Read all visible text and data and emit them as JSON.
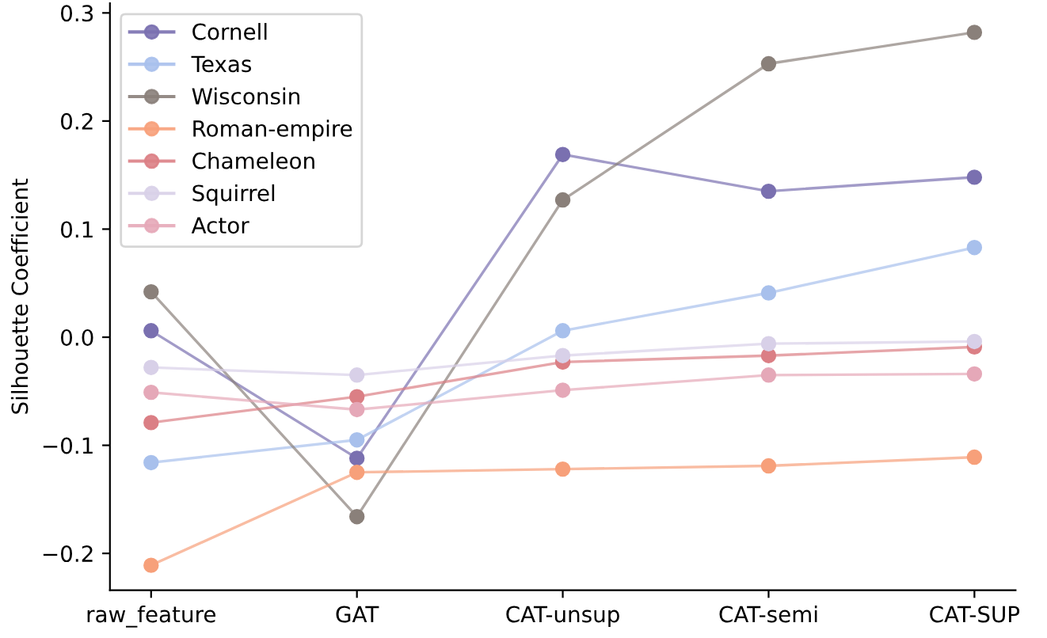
{
  "chart_data": {
    "type": "line",
    "ylabel": "Silhouette Coefficient",
    "categories": [
      "raw_feature",
      "GAT",
      "CAT-unsup",
      "CAT-semi",
      "CAT-SUP"
    ],
    "series": [
      {
        "name": "Cornell",
        "color": "#7a70b0",
        "values": [
          0.006,
          -0.112,
          0.169,
          0.135,
          0.148
        ]
      },
      {
        "name": "Texas",
        "color": "#a8c0ec",
        "values": [
          -0.116,
          -0.095,
          0.006,
          0.041,
          0.083
        ]
      },
      {
        "name": "Wisconsin",
        "color": "#8a807a",
        "values": [
          0.042,
          -0.166,
          0.127,
          0.253,
          0.282
        ]
      },
      {
        "name": "Roman-empire",
        "color": "#f7a07a",
        "values": [
          -0.211,
          -0.125,
          -0.122,
          -0.119,
          -0.111
        ]
      },
      {
        "name": "Chameleon",
        "color": "#db7f85",
        "values": [
          -0.079,
          -0.055,
          -0.023,
          -0.017,
          -0.009
        ]
      },
      {
        "name": "Squirrel",
        "color": "#d8d0e8",
        "values": [
          -0.028,
          -0.035,
          -0.017,
          -0.006,
          -0.004
        ]
      },
      {
        "name": "Actor",
        "color": "#e5a8b8",
        "values": [
          -0.051,
          -0.067,
          -0.049,
          -0.035,
          -0.034
        ]
      }
    ],
    "ylim": [
      -0.234,
      0.309
    ],
    "yticks": [
      {
        "value": -0.2,
        "label": "−0.2"
      },
      {
        "value": -0.1,
        "label": "−0.1"
      },
      {
        "value": 0.0,
        "label": "0.0"
      },
      {
        "value": 0.1,
        "label": "0.1"
      },
      {
        "value": 0.2,
        "label": "0.2"
      },
      {
        "value": 0.3,
        "label": "0.3"
      }
    ],
    "marker": "circle",
    "line_style": "solid",
    "legend": "top left",
    "grid": false
  }
}
